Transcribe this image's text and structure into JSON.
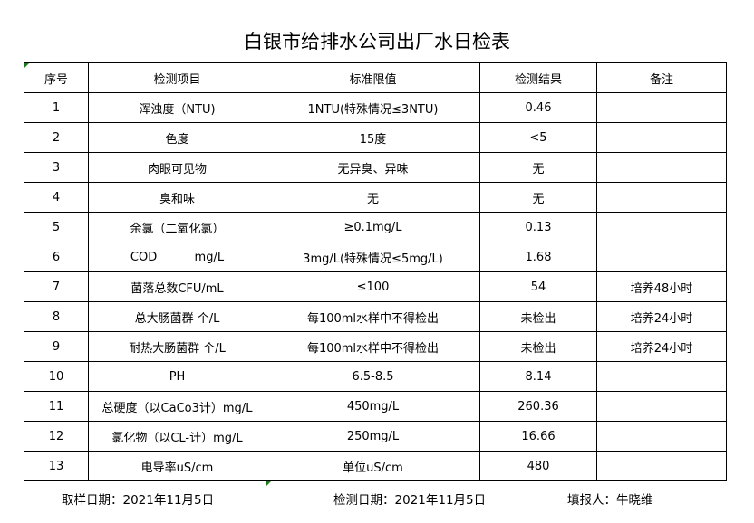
{
  "title": "白银市给排水公司出厂水日检表",
  "headers": [
    "序号",
    "检测项目",
    "标准限值",
    "检测结果",
    "备注"
  ],
  "rows": [
    [
      "1",
      "浑浊度（NTU)",
      "1NTU(特殊情况≤3NTU)",
      "0.46",
      ""
    ],
    [
      "2",
      "色度",
      "15度",
      "<5",
      ""
    ],
    [
      "3",
      "肉眼可见物",
      "无异臭、异味",
      "无",
      ""
    ],
    [
      "4",
      "臭和味",
      "无",
      "无",
      ""
    ],
    [
      "5",
      "余氯（二氧化氯）",
      "≥0.1mg/L",
      "0.13",
      ""
    ],
    [
      "6",
      "COD          mg/L",
      "3mg/L(特殊情况≤5mg/L)",
      "1.68",
      ""
    ],
    [
      "7",
      "菌落总数CFU/mL",
      "≤100",
      "54",
      "培养48小时"
    ],
    [
      "8",
      "总大肠菌群 个/L",
      "每100ml水样中不得检出",
      "未检出",
      "培养24小时"
    ],
    [
      "9",
      "耐热大肠菌群 个/L",
      "每100ml水样中不得检出",
      "未检出",
      "培养24小时"
    ],
    [
      "10",
      "PH",
      "6.5-8.5",
      "8.14",
      ""
    ],
    [
      "11",
      "总硬度（以CaCo3计）mg/L",
      "450mg/L",
      "260.36",
      ""
    ],
    [
      "12",
      "氯化物（以CL-计）mg/L",
      "250mg/L",
      "16.66",
      ""
    ],
    [
      "13",
      "电导率uS/cm",
      "单位uS/cm",
      "480",
      ""
    ]
  ],
  "footer": {
    "sample_date": "取样日期：2021年11月5日",
    "test_date": "检测日期：2021年11月5日",
    "reporter": "填报人：牛晓维"
  }
}
